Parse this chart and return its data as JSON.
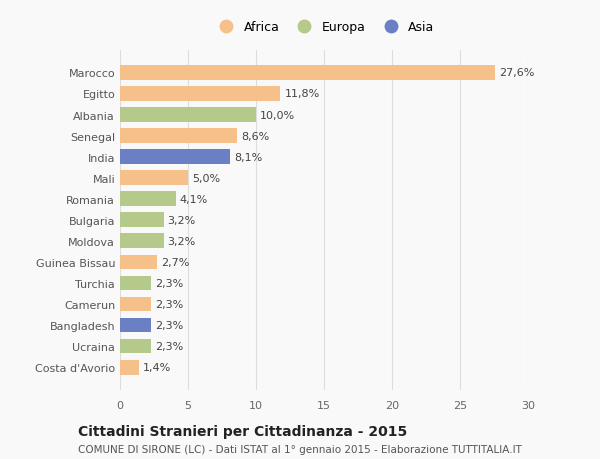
{
  "countries": [
    "Marocco",
    "Egitto",
    "Albania",
    "Senegal",
    "India",
    "Mali",
    "Romania",
    "Bulgaria",
    "Moldova",
    "Guinea Bissau",
    "Turchia",
    "Camerun",
    "Bangladesh",
    "Ucraina",
    "Costa d'Avorio"
  ],
  "values": [
    27.6,
    11.8,
    10.0,
    8.6,
    8.1,
    5.0,
    4.1,
    3.2,
    3.2,
    2.7,
    2.3,
    2.3,
    2.3,
    2.3,
    1.4
  ],
  "labels": [
    "27,6%",
    "11,8%",
    "10,0%",
    "8,6%",
    "8,1%",
    "5,0%",
    "4,1%",
    "3,2%",
    "3,2%",
    "2,7%",
    "2,3%",
    "2,3%",
    "2,3%",
    "2,3%",
    "1,4%"
  ],
  "colors": [
    "#f5c08a",
    "#f5c08a",
    "#b5c98a",
    "#f5c08a",
    "#6b7fc4",
    "#f5c08a",
    "#b5c98a",
    "#b5c98a",
    "#b5c98a",
    "#f5c08a",
    "#b5c98a",
    "#f5c08a",
    "#6b7fc4",
    "#b5c98a",
    "#f5c08a"
  ],
  "legend": [
    {
      "label": "Africa",
      "color": "#f5c08a"
    },
    {
      "label": "Europa",
      "color": "#b5c98a"
    },
    {
      "label": "Asia",
      "color": "#6b7fc4"
    }
  ],
  "title": "Cittadini Stranieri per Cittadinanza - 2015",
  "subtitle": "COMUNE DI SIRONE (LC) - Dati ISTAT al 1° gennaio 2015 - Elaborazione TUTTITALIA.IT",
  "xlim": [
    0,
    30
  ],
  "xticks": [
    0,
    5,
    10,
    15,
    20,
    25,
    30
  ],
  "background_color": "#f9f9f9",
  "bar_height": 0.7,
  "label_fontsize": 8,
  "tick_fontsize": 8,
  "title_fontsize": 10,
  "subtitle_fontsize": 7.5,
  "legend_fontsize": 9
}
